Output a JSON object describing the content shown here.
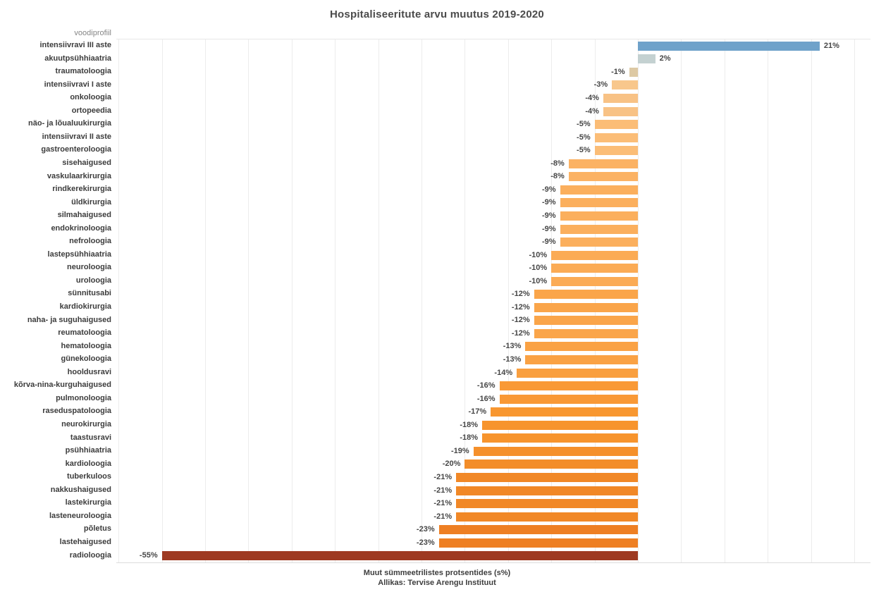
{
  "title": "Hospitaliseeritute arvu muutus 2019-2020",
  "footer": {
    "xlabel": "Muut sümmeetrilistes protsentides (s%)",
    "source": "Allikas: Tervise Arengu Instituut"
  },
  "chart_data": {
    "type": "bar",
    "orientation": "horizontal",
    "category_header": "voodiprofiil",
    "title": "Hospitaliseeritute arvu muutus 2019-2020",
    "xlabel": "Muut sümmeetrilistes protsentides (s%)",
    "source": "Allikas: Tervise Arengu Instituut",
    "value_suffix": "%",
    "xlim": [
      -60,
      26
    ],
    "grid_step": 5,
    "grid_on": true,
    "legend": "none",
    "bars": [
      {
        "label": "intensiivravi III aste",
        "value": 21,
        "color": "#6fa2ca"
      },
      {
        "label": "akuutpsühhiaatria",
        "value": 2,
        "color": "#c4d1d1"
      },
      {
        "label": "traumatoloogia",
        "value": -1,
        "color": "#ddc9a4"
      },
      {
        "label": "intensiivravi I aste",
        "value": -3,
        "color": "#f8c78c"
      },
      {
        "label": "onkoloogia",
        "value": -4,
        "color": "#f8c285"
      },
      {
        "label": "ortopeedia",
        "value": -4,
        "color": "#f8c285"
      },
      {
        "label": "näo- ja lõualuukirurgia",
        "value": -5,
        "color": "#fbbd77"
      },
      {
        "label": "intensiivravi II aste",
        "value": -5,
        "color": "#fbbd77"
      },
      {
        "label": "gastroenteroloogia",
        "value": -5,
        "color": "#fbbd77"
      },
      {
        "label": "sisehaigused",
        "value": -8,
        "color": "#fbb264"
      },
      {
        "label": "vaskulaarkirurgia",
        "value": -8,
        "color": "#fbb264"
      },
      {
        "label": "rindkerekirurgia",
        "value": -9,
        "color": "#fbaf5d"
      },
      {
        "label": "üldkirurgia",
        "value": -9,
        "color": "#fbaf5d"
      },
      {
        "label": "silmahaigused",
        "value": -9,
        "color": "#fbaf5d"
      },
      {
        "label": "endokrinoloogia",
        "value": -9,
        "color": "#fbaf5d"
      },
      {
        "label": "nefroloogia",
        "value": -9,
        "color": "#fbaf5d"
      },
      {
        "label": "lastepsühhiaatria",
        "value": -10,
        "color": "#fbab55"
      },
      {
        "label": "neuroloogia",
        "value": -10,
        "color": "#fbab55"
      },
      {
        "label": "uroloogia",
        "value": -10,
        "color": "#fbab55"
      },
      {
        "label": "sünnitusabi",
        "value": -12,
        "color": "#faa54a"
      },
      {
        "label": "kardiokirurgia",
        "value": -12,
        "color": "#faa54a"
      },
      {
        "label": "naha- ja suguhaigused",
        "value": -12,
        "color": "#faa54a"
      },
      {
        "label": "reumatoloogia",
        "value": -12,
        "color": "#faa54a"
      },
      {
        "label": "hematoloogia",
        "value": -13,
        "color": "#faa244"
      },
      {
        "label": "günekoloogia",
        "value": -13,
        "color": "#faa244"
      },
      {
        "label": "hooldusravi",
        "value": -14,
        "color": "#f99f3f"
      },
      {
        "label": "kõrva-nina-kurguhaigused",
        "value": -16,
        "color": "#f99936"
      },
      {
        "label": "pulmonoloogia",
        "value": -16,
        "color": "#f99936"
      },
      {
        "label": "raseduspatoloogia",
        "value": -17,
        "color": "#f89730"
      },
      {
        "label": "neurokirurgia",
        "value": -18,
        "color": "#f7942d"
      },
      {
        "label": "taastusravi",
        "value": -18,
        "color": "#f7942d"
      },
      {
        "label": "psühhiaatria",
        "value": -19,
        "color": "#f5902b"
      },
      {
        "label": "kardioloogia",
        "value": -20,
        "color": "#f38d29"
      },
      {
        "label": "tuberkuloos",
        "value": -21,
        "color": "#f18827"
      },
      {
        "label": "nakkushaigused",
        "value": -21,
        "color": "#f18827"
      },
      {
        "label": "lastekirurgia",
        "value": -21,
        "color": "#f18827"
      },
      {
        "label": "lasteneuroloogia",
        "value": -21,
        "color": "#f18827"
      },
      {
        "label": "põletus",
        "value": -23,
        "color": "#ee7f23"
      },
      {
        "label": "lastehaigused",
        "value": -23,
        "color": "#ee7f23"
      },
      {
        "label": "radioloogia",
        "value": -55,
        "color": "#9e3a22"
      }
    ]
  },
  "colors": {
    "grid": "#ececec",
    "title_text": "#4b4b4b",
    "category_text": "#3c3c3c",
    "header_text": "#858585",
    "value_text": "#464646"
  }
}
